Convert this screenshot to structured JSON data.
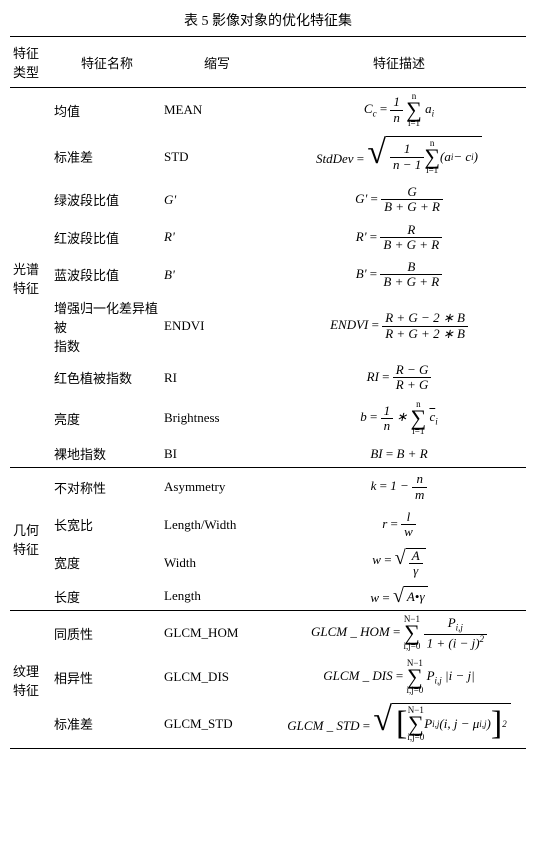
{
  "title": "表 5 影像对象的优化特征集",
  "headers": {
    "type": "特征\n类型",
    "name": "特征名称",
    "abbr": "缩写",
    "desc": "特征描述"
  },
  "groups": [
    {
      "type_label": "光谱特征",
      "rows": [
        {
          "name": "均值",
          "abbr": "MEAN",
          "formula_key": "mean"
        },
        {
          "name": "标准差",
          "abbr": "STD",
          "formula_key": "std"
        },
        {
          "name": "绿波段比值",
          "abbr": "G'",
          "abbr_italic": true,
          "formula_key": "gprime"
        },
        {
          "name": "红波段比值",
          "abbr": "R'",
          "abbr_italic": true,
          "formula_key": "rprime"
        },
        {
          "name": "蓝波段比值",
          "abbr": "B'",
          "abbr_italic": true,
          "formula_key": "bprime"
        },
        {
          "name": "增强归一化差异植被\n指数",
          "abbr": "ENDVI",
          "formula_key": "endvi"
        },
        {
          "name": "红色植被指数",
          "abbr": "RI",
          "formula_key": "ri"
        },
        {
          "name": "亮度",
          "abbr": "Brightness",
          "formula_key": "brightness"
        },
        {
          "name": "裸地指数",
          "abbr": "BI",
          "formula_key": "bi"
        }
      ]
    },
    {
      "type_label": "几何特征",
      "rows": [
        {
          "name": "不对称性",
          "abbr": "Asymmetry",
          "formula_key": "asym"
        },
        {
          "name": "长宽比",
          "abbr": "Length/Width",
          "formula_key": "lw"
        },
        {
          "name": "宽度",
          "abbr": "Width",
          "formula_key": "width"
        },
        {
          "name": "长度",
          "abbr": "Length",
          "formula_key": "length"
        }
      ]
    },
    {
      "type_label": "纹理特征",
      "rows": [
        {
          "name": "同质性",
          "abbr": "GLCM_HOM",
          "formula_key": "hom"
        },
        {
          "name": "相异性",
          "abbr": "GLCM_DIS",
          "formula_key": "dis"
        },
        {
          "name": "标准差",
          "abbr": "GLCM_STD",
          "formula_key": "gstd"
        }
      ]
    }
  ]
}
